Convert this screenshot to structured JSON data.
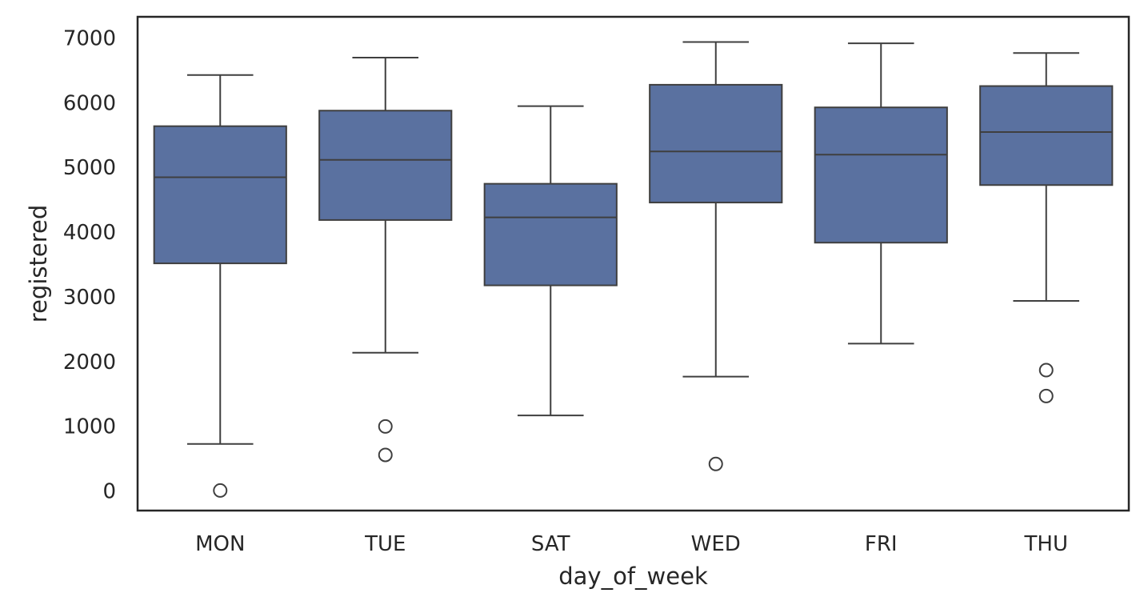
{
  "chart_data": {
    "type": "box",
    "title": "",
    "xlabel": "day_of_week",
    "ylabel": "registered",
    "ylim": [
      -290,
      7340
    ],
    "yticks": [
      0,
      1000,
      2000,
      3000,
      4000,
      5000,
      6000,
      7000
    ],
    "ytick_labels": [
      "0",
      "1000",
      "2000",
      "3000",
      "4000",
      "5000",
      "6000",
      "7000"
    ],
    "grid": false,
    "categories": [
      "MON",
      "TUE",
      "SAT",
      "WED",
      "FRI",
      "THU"
    ],
    "boxes": [
      {
        "category": "MON",
        "whisker_low": 740,
        "q1": 3530,
        "median": 4860,
        "q3": 5650,
        "whisker_high": 6440,
        "outliers": [
          20
        ]
      },
      {
        "category": "TUE",
        "whisker_low": 2150,
        "q1": 4200,
        "median": 5130,
        "q3": 5890,
        "whisker_high": 6710,
        "outliers": [
          1010,
          570
        ]
      },
      {
        "category": "SAT",
        "whisker_low": 1180,
        "q1": 3190,
        "median": 4240,
        "q3": 4760,
        "whisker_high": 5960,
        "outliers": []
      },
      {
        "category": "WED",
        "whisker_low": 1780,
        "q1": 4470,
        "median": 5260,
        "q3": 6290,
        "whisker_high": 6950,
        "outliers": [
          430
        ]
      },
      {
        "category": "FRI",
        "whisker_low": 2290,
        "q1": 3850,
        "median": 5210,
        "q3": 5940,
        "whisker_high": 6930,
        "outliers": []
      },
      {
        "category": "THU",
        "whisker_low": 2950,
        "q1": 4740,
        "median": 5560,
        "q3": 6270,
        "whisker_high": 6780,
        "outliers": [
          1880,
          1480
        ]
      }
    ],
    "colors": {
      "box_fill": "#5a71a0",
      "line": "#3f3f3f",
      "spine": "#262626",
      "text": "#262626",
      "outlier_fill": "#ffffff"
    }
  }
}
